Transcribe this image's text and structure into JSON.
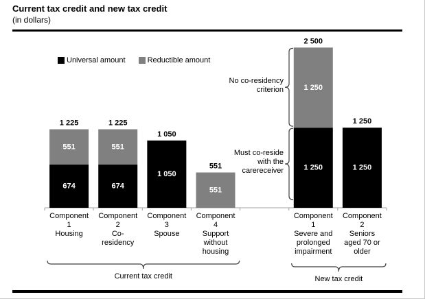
{
  "header": {
    "title": "Current tax credit and new tax credit",
    "subtitle": "(in dollars)"
  },
  "colors": {
    "universal": "#000000",
    "reductible": "#808080",
    "axis": "#a6a6a6",
    "brace": "#3f3f3f",
    "rule": "#000000",
    "text": "#000000",
    "bar_value_text": "#ffffff",
    "background": "#ffffff"
  },
  "chart_data": {
    "type": "bar",
    "stacked": true,
    "title": "Current tax credit and new tax credit",
    "unit_note": "(in dollars)",
    "ylim": [
      0,
      2600
    ],
    "grid": false,
    "legend_position": "top-left",
    "legend": [
      {
        "label": "Universal amount",
        "color_key": "universal"
      },
      {
        "label": "Reductible amount",
        "color_key": "reductible"
      }
    ],
    "categories": [
      {
        "slot": 0,
        "group": 0,
        "label_lines": [
          "Component",
          "1",
          "Housing"
        ]
      },
      {
        "slot": 1,
        "group": 0,
        "label_lines": [
          "Component",
          "2",
          "Co-",
          "residency"
        ]
      },
      {
        "slot": 2,
        "group": 0,
        "label_lines": [
          "Component",
          "3",
          "Spouse"
        ]
      },
      {
        "slot": 3,
        "group": 0,
        "label_lines": [
          "Component",
          "4",
          "Support",
          "without",
          "housing"
        ]
      },
      {
        "slot": 5,
        "group": 1,
        "label_lines": [
          "Component",
          "1",
          "Severe and",
          "prolonged",
          "impairment"
        ]
      },
      {
        "slot": 6,
        "group": 1,
        "label_lines": [
          "Component",
          "2",
          "Seniors",
          "aged 70 or",
          "older"
        ]
      }
    ],
    "series": [
      {
        "name": "Universal amount",
        "color_key": "universal",
        "values": [
          674,
          674,
          1050,
          0,
          1250,
          1250
        ],
        "labels": [
          "674",
          "674",
          "1 050",
          "",
          "1 250",
          "1 250"
        ]
      },
      {
        "name": "Reductible amount",
        "color_key": "reductible",
        "values": [
          551,
          551,
          0,
          551,
          1250,
          0
        ],
        "labels": [
          "551",
          "551",
          "",
          "551",
          "1 250",
          ""
        ]
      }
    ],
    "totals": [
      1225,
      1225,
      1050,
      551,
      2500,
      1250
    ],
    "total_labels": [
      "1 225",
      "1 225",
      "1 050",
      "551",
      "2 500",
      "1 250"
    ],
    "groups": [
      {
        "label": "Current tax credit",
        "slot_from": 0,
        "slot_to": 3
      },
      {
        "label": "New tax credit",
        "slot_from": 5,
        "slot_to": 6
      }
    ],
    "annotations": [
      {
        "lines": [
          "No co-residency",
          "criterion"
        ],
        "value_from": 1250,
        "value_to": 2500
      },
      {
        "lines": [
          "Must co-reside",
          "with the",
          "carereceiver"
        ],
        "value_from": 0,
        "value_to": 1250
      }
    ]
  }
}
